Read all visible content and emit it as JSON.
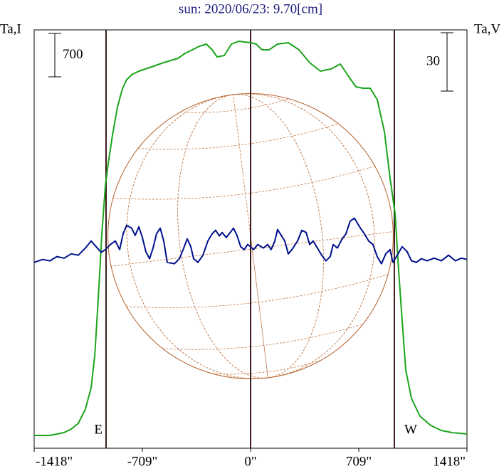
{
  "chart_data": {
    "type": "line",
    "title": "sun: 2020/06/23: 9.70[cm]",
    "ylabel": "Ta,I",
    "y2label": "Ta,V",
    "xlim": [
      -1418,
      1418
    ],
    "xticks": [
      {
        "value": -1418,
        "label": "-1418\""
      },
      {
        "value": -709,
        "label": "-709\""
      },
      {
        "value": 0,
        "label": "0\""
      },
      {
        "value": 709,
        "label": "709\""
      },
      {
        "value": 1418,
        "label": "1418\""
      }
    ],
    "ylim": [
      -207,
      6541
    ],
    "y2lim": [
      -97,
      118
    ],
    "scale_bars": [
      700,
      30
    ],
    "disk_radius": 935,
    "vlines": [
      {
        "x": -947,
        "label": "E"
      },
      {
        "x": 0
      },
      {
        "x": 942,
        "label": "W"
      }
    ],
    "series": [
      {
        "name": "I",
        "color": "#1aa51a",
        "x": [
          -1418,
          -1315,
          -1222,
          -1175,
          -1129,
          -1082,
          -1045,
          -1021,
          -998,
          -975,
          -951,
          -933,
          -905,
          -872,
          -840,
          -812,
          -779,
          -732,
          -662,
          -569,
          -476,
          -429,
          -382,
          -336,
          -289,
          -252,
          -219,
          -172,
          -126,
          -79,
          0,
          37,
          75,
          121,
          177,
          247,
          317,
          387,
          457,
          527,
          588,
          644,
          690,
          737,
          784,
          830,
          877,
          914,
          947,
          970,
          993,
          1017,
          1054,
          1110,
          1180,
          1250,
          1320,
          1418
        ],
        "values": [
          0,
          0,
          46,
          103,
          195,
          425,
          769,
          1285,
          2203,
          3236,
          4039,
          4384,
          4843,
          5302,
          5588,
          5738,
          5818,
          5875,
          5933,
          6013,
          6082,
          6162,
          6220,
          6277,
          6311,
          6220,
          6105,
          6128,
          6311,
          6357,
          6334,
          6311,
          6220,
          6220,
          6311,
          6334,
          6220,
          6013,
          5875,
          5910,
          5990,
          5783,
          5623,
          5600,
          5600,
          5416,
          4900,
          4154,
          3580,
          2662,
          1859,
          1056,
          597,
          310,
          161,
          80,
          46,
          23
        ]
      },
      {
        "name": "V",
        "color": "#00108c",
        "axis": "y2",
        "x": [
          -1418,
          -1362,
          -1315,
          -1269,
          -1222,
          -1175,
          -1129,
          -1082,
          -1045,
          -1012,
          -979,
          -951,
          -919,
          -886,
          -858,
          -835,
          -812,
          -779,
          -756,
          -732,
          -709,
          -686,
          -662,
          -639,
          -616,
          -592,
          -569,
          -546,
          -499,
          -466,
          -438,
          -415,
          -392,
          -373,
          -345,
          -312,
          -280,
          -252,
          -229,
          -205,
          -187,
          -159,
          -140,
          -112,
          -89,
          -65,
          -42,
          -19,
          0,
          19,
          47,
          84,
          112,
          135,
          159,
          177,
          201,
          224,
          247,
          271,
          308,
          336,
          364,
          387,
          410,
          438,
          466,
          494,
          522,
          541,
          569,
          597,
          625,
          653,
          681,
          714,
          746,
          774,
          802,
          830,
          858,
          886,
          914,
          933,
          961,
          993,
          1026,
          1054,
          1087,
          1119,
          1157,
          1203,
          1250,
          1297,
          1343,
          1381,
          1418
        ],
        "values": [
          -1.5,
          0,
          -0.7,
          1.5,
          0.7,
          2.9,
          2.2,
          5.9,
          9.5,
          6.6,
          3.7,
          5.1,
          7.7,
          9.5,
          5.1,
          13.2,
          17.6,
          16.1,
          12.4,
          16.8,
          11.3,
          4.0,
          0.4,
          5.9,
          13.2,
          16.1,
          9.5,
          -1.5,
          -2.2,
          0.4,
          5.9,
          10.6,
          6.6,
          0.4,
          -1.5,
          2.2,
          9.5,
          13.2,
          15.0,
          12.1,
          13.9,
          11.3,
          13.2,
          16.1,
          12.4,
          6.6,
          5.1,
          7.7,
          6.6,
          5.1,
          7.7,
          5.9,
          7.7,
          5.1,
          9.5,
          15.4,
          12.4,
          9.5,
          2.9,
          5.1,
          9.5,
          15.0,
          13.9,
          7.7,
          9.5,
          5.9,
          2.2,
          -0.7,
          1.5,
          7.7,
          5.9,
          10.2,
          13.2,
          19.8,
          21.2,
          16.8,
          13.2,
          9.5,
          7.7,
          1.5,
          -2.2,
          2.9,
          5.1,
          -1.5,
          2.2,
          6.6,
          4.0,
          -0.7,
          -1.5,
          0.4,
          -0.7,
          0.7,
          -0.7,
          2.2,
          -0.7,
          0.7,
          0
        ]
      }
    ]
  }
}
